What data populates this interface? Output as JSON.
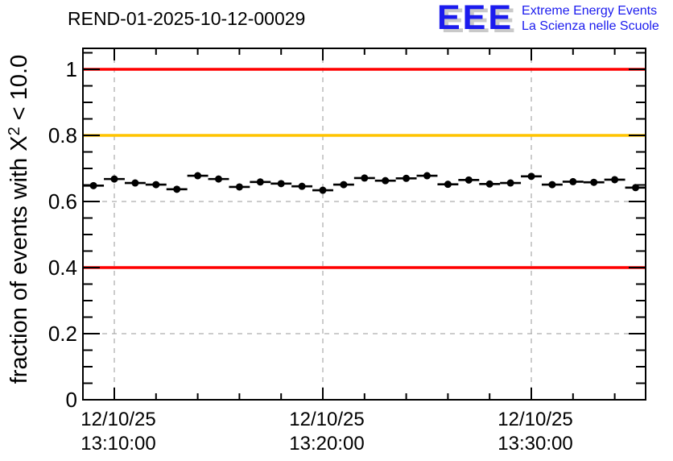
{
  "header": {
    "title": "REND-01-2025-10-12-00029"
  },
  "logo": {
    "acronym": "EEE",
    "line1": "Extreme Energy Events",
    "line2": "La Scienza nelle Scuole",
    "color": "#1b1bee"
  },
  "chart_data": {
    "type": "scatter",
    "title": "REND-01-2025-10-12-00029",
    "ylabel": "fraction of events with X^2 < 10.0",
    "ylabel_parts": {
      "pre": "fraction of events with X",
      "sup": "2",
      "post": " < 10.0"
    },
    "xlabel": "",
    "ylim": [
      0,
      1.063
    ],
    "xlim_minutes": [
      -1.51,
      25.48
    ],
    "grid": true,
    "y_ticks": [
      0,
      0.2,
      0.4,
      0.6,
      0.8,
      1
    ],
    "y_tick_labels": [
      "0",
      "0.2",
      "0.4",
      "0.6",
      "0.8",
      "1"
    ],
    "y_minor_step": 0.05,
    "x_minor_step_min": 2,
    "x_major_ticks": [
      {
        "t": 0,
        "date": "12/10/25",
        "time": "13:10:00"
      },
      {
        "t": 10,
        "date": "12/10/25",
        "time": "13:20:00"
      },
      {
        "t": 20,
        "date": "12/10/25",
        "time": "13:30:00"
      }
    ],
    "series": [
      {
        "name": "fraction_chi2_lt_10",
        "marker": "filled-circle",
        "color": "#000000",
        "t_minutes": [
          -1,
          0,
          1,
          2,
          3,
          4,
          5,
          6,
          7,
          8,
          9,
          10,
          11,
          12,
          13,
          14,
          15,
          16,
          17,
          18,
          19,
          20,
          21,
          22,
          23,
          24,
          25
        ],
        "values": [
          0.648,
          0.668,
          0.656,
          0.651,
          0.637,
          0.678,
          0.668,
          0.644,
          0.659,
          0.654,
          0.646,
          0.634,
          0.651,
          0.671,
          0.663,
          0.67,
          0.678,
          0.652,
          0.665,
          0.653,
          0.656,
          0.676,
          0.651,
          0.66,
          0.658,
          0.666,
          0.642
        ],
        "xerr_minutes": 0.5,
        "yerr": 0.01
      }
    ],
    "ref_lines": [
      {
        "y": 1.0,
        "color": "#ff0000",
        "name": "upper-limit-line"
      },
      {
        "y": 0.8,
        "color": "#ffc400",
        "name": "warning-line"
      },
      {
        "y": 0.4,
        "color": "#ff0000",
        "name": "lower-limit-line"
      }
    ],
    "colors": {
      "grid": "#9a9a9a",
      "frame": "#000000"
    }
  }
}
